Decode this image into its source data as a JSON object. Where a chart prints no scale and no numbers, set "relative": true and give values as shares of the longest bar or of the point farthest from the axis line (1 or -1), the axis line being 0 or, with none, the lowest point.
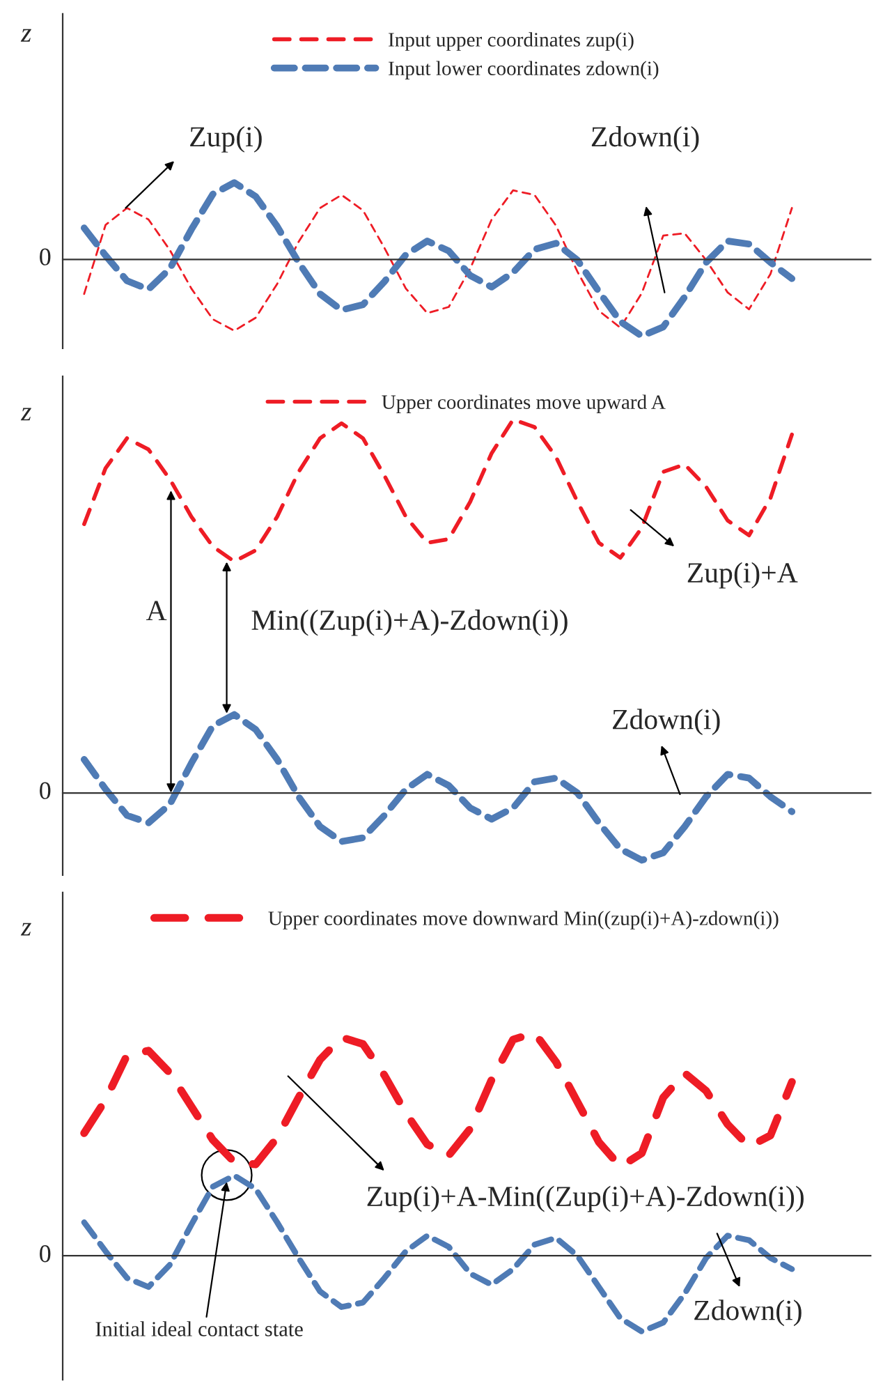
{
  "chart_data": [
    {
      "type": "line",
      "relative": true,
      "ylabel": "z",
      "legend": "top",
      "marker": "none",
      "line_style": "dashed",
      "grid": false,
      "categories": [
        null,
        null,
        null,
        null,
        null,
        null,
        null,
        null,
        null,
        null,
        null,
        null,
        null,
        null,
        null,
        null,
        null,
        null,
        null,
        null,
        null,
        null,
        null,
        null,
        null,
        null,
        null,
        null,
        null,
        null,
        null,
        null,
        null,
        null
      ],
      "series": [
        {
          "name": "Input upper coordinates zup(i)",
          "color": "#ee1c25",
          "values": [
            -0.45,
            0.45,
            0.67,
            0.52,
            0.12,
            -0.38,
            -0.78,
            -0.93,
            -0.76,
            -0.32,
            0.23,
            0.67,
            0.84,
            0.64,
            0.15,
            -0.38,
            -0.7,
            -0.62,
            -0.12,
            0.52,
            0.9,
            0.84,
            0.44,
            -0.16,
            -0.67,
            -0.89,
            -0.44,
            0.31,
            0.34,
            -0.01,
            -0.43,
            -0.65,
            -0.19,
            0.67
          ]
        },
        {
          "name": "Input lower coordinates zdown(i)",
          "color": "#4f7bb5",
          "values": [
            0.41,
            0.05,
            -0.28,
            -0.39,
            -0.12,
            0.39,
            0.85,
            1,
            0.82,
            0.43,
            -0.04,
            -0.45,
            -0.66,
            -0.59,
            -0.29,
            0.06,
            0.24,
            0.11,
            -0.21,
            -0.36,
            -0.17,
            0.13,
            0.21,
            -0.01,
            -0.42,
            -0.81,
            -1,
            -0.88,
            -0.49,
            -0.04,
            0.24,
            0.2,
            -0.04,
            -0.25
          ]
        }
      ],
      "annotations": [
        "Zup(i)",
        "Zdown(i)",
        "0"
      ]
    },
    {
      "type": "line",
      "relative": true,
      "ylabel": "z",
      "legend": "top",
      "marker": "none",
      "line_style": "dashed",
      "grid": false,
      "categories": [
        null,
        null,
        null,
        null,
        null,
        null,
        null,
        null,
        null,
        null,
        null,
        null,
        null,
        null,
        null,
        null,
        null,
        null,
        null,
        null,
        null,
        null,
        null,
        null,
        null,
        null,
        null,
        null,
        null,
        null,
        null,
        null,
        null,
        null
      ],
      "series": [
        {
          "name": "Upper coordinates move upward A",
          "color": "#ee1c25",
          "values": [
            0.72,
            0.87,
            0.95,
            0.92,
            0.84,
            0.74,
            0.66,
            0.62,
            0.65,
            0.74,
            0.86,
            0.95,
            0.99,
            0.95,
            0.85,
            0.74,
            0.67,
            0.68,
            0.78,
            0.91,
            1,
            0.98,
            0.9,
            0.78,
            0.67,
            0.63,
            0.71,
            0.86,
            0.88,
            0.82,
            0.73,
            0.69,
            0.79,
            0.96
          ]
        },
        {
          "color": "#4f7bb5",
          "values": [
            0.09,
            0.01,
            -0.06,
            -0.08,
            -0.03,
            0.08,
            0.18,
            0.21,
            0.17,
            0.09,
            -0.01,
            -0.09,
            -0.13,
            -0.12,
            -0.06,
            0.01,
            0.05,
            0.02,
            -0.04,
            -0.07,
            -0.04,
            0.03,
            0.04,
            0,
            -0.08,
            -0.15,
            -0.18,
            -0.16,
            -0.09,
            -0.01,
            0.05,
            0.04,
            -0.01,
            -0.05
          ]
        }
      ],
      "annotations": [
        "A",
        "Min((Zup(i)+A)-Zdown(i))",
        "Zup(i)+A",
        "Zdown(i)",
        "0"
      ]
    },
    {
      "type": "line",
      "relative": true,
      "ylabel": "z",
      "legend": "top",
      "marker": "none",
      "line_style": "dashed",
      "grid": false,
      "categories": [
        null,
        null,
        null,
        null,
        null,
        null,
        null,
        null,
        null,
        null,
        null,
        null,
        null,
        null,
        null,
        null,
        null,
        null,
        null,
        null,
        null,
        null,
        null,
        null,
        null,
        null,
        null,
        null,
        null,
        null,
        null,
        null,
        null,
        null
      ],
      "series": [
        {
          "name": "Upper coordinates move downward Min((zup(i)+A)-zdown(i))",
          "color": "#ee1c25",
          "values": [
            0.55,
            0.7,
            0.9,
            0.92,
            0.82,
            0.67,
            0.52,
            0.42,
            0.41,
            0.53,
            0.71,
            0.88,
            0.98,
            0.95,
            0.81,
            0.64,
            0.5,
            0.45,
            0.57,
            0.79,
            0.97,
            1,
            0.87,
            0.69,
            0.51,
            0.4,
            0.46,
            0.71,
            0.82,
            0.74,
            0.59,
            0.49,
            0.54,
            0.78
          ]
        },
        {
          "color": "#4f7bb5",
          "values": [
            0.15,
            0.02,
            -0.1,
            -0.14,
            -0.04,
            0.14,
            0.31,
            0.36,
            0.3,
            0.15,
            -0.01,
            -0.16,
            -0.23,
            -0.21,
            -0.1,
            0.02,
            0.09,
            0.04,
            -0.08,
            -0.13,
            -0.06,
            0.05,
            0.08,
            0,
            -0.14,
            -0.28,
            -0.34,
            -0.3,
            -0.17,
            -0.01,
            0.09,
            0.07,
            -0.01,
            -0.06
          ]
        }
      ],
      "annotations": [
        "Zup(i)+A-Min((Zup(i)+A)-Zdown(i))",
        "Zdown(i)",
        "Initial ideal contact state",
        "0"
      ]
    }
  ]
}
